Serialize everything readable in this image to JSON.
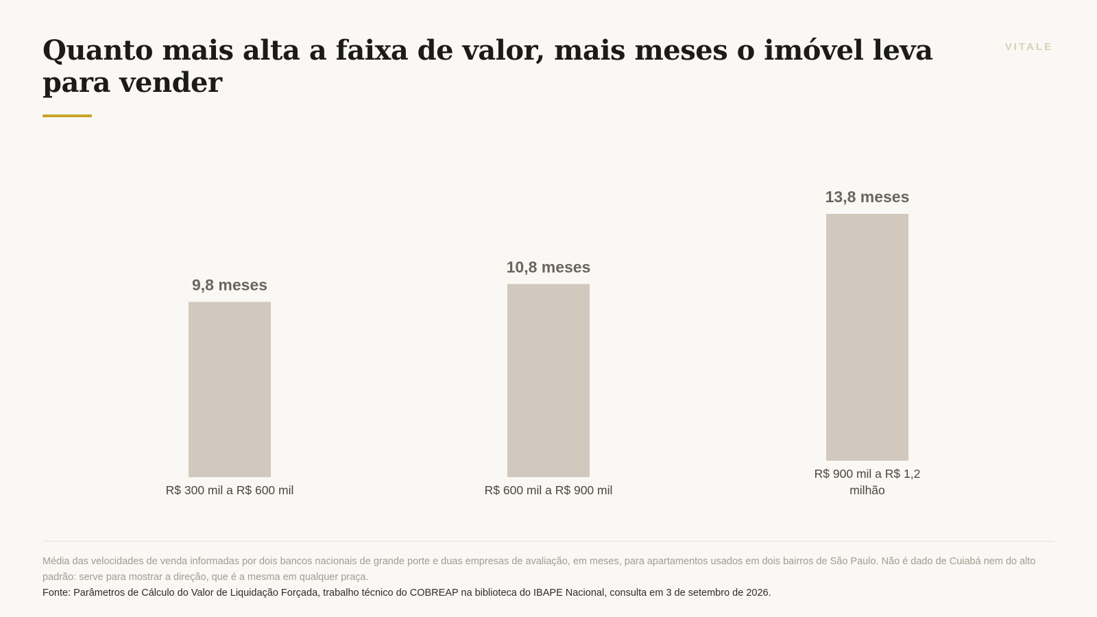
{
  "brand": "VITALE",
  "title": "Quanto mais alta a faixa de valor, mais meses o imóvel leva para vender",
  "colors": {
    "bar": "#d1c9bd",
    "value_label": "#6b655c",
    "category_label": "#4a463f",
    "accent": "#c9a227",
    "background": "#f9f8f4"
  },
  "chart_data": {
    "type": "bar",
    "categories": [
      "R$ 300 mil a R$ 600 mil",
      "R$ 600 mil a R$ 900 mil",
      "R$ 900 mil a R$ 1,2 milhão"
    ],
    "values": [
      9.8,
      10.8,
      13.8
    ],
    "value_labels": [
      "9,8 meses",
      "10,8 meses",
      "13,8 meses"
    ],
    "title": "Quanto mais alta a faixa de valor, mais meses o imóvel leva para vender",
    "xlabel": "",
    "ylabel": "",
    "ylim": [
      0,
      13.8
    ],
    "grid": false,
    "legend": "none"
  },
  "footer": {
    "note": "Média das velocidades de venda informadas por dois bancos nacionais de grande porte e duas empresas de avaliação, em meses, para apartamentos usados em dois bairros de São Paulo. Não é dado de Cuiabá nem do alto padrão: serve para mostrar a direção, que é a mesma em qualquer praça.",
    "source": "Fonte: Parâmetros de Cálculo do Valor de Liquidação Forçada, trabalho técnico do COBREAP na biblioteca do IBAPE Nacional, consulta em 3 de setembro de 2026."
  }
}
